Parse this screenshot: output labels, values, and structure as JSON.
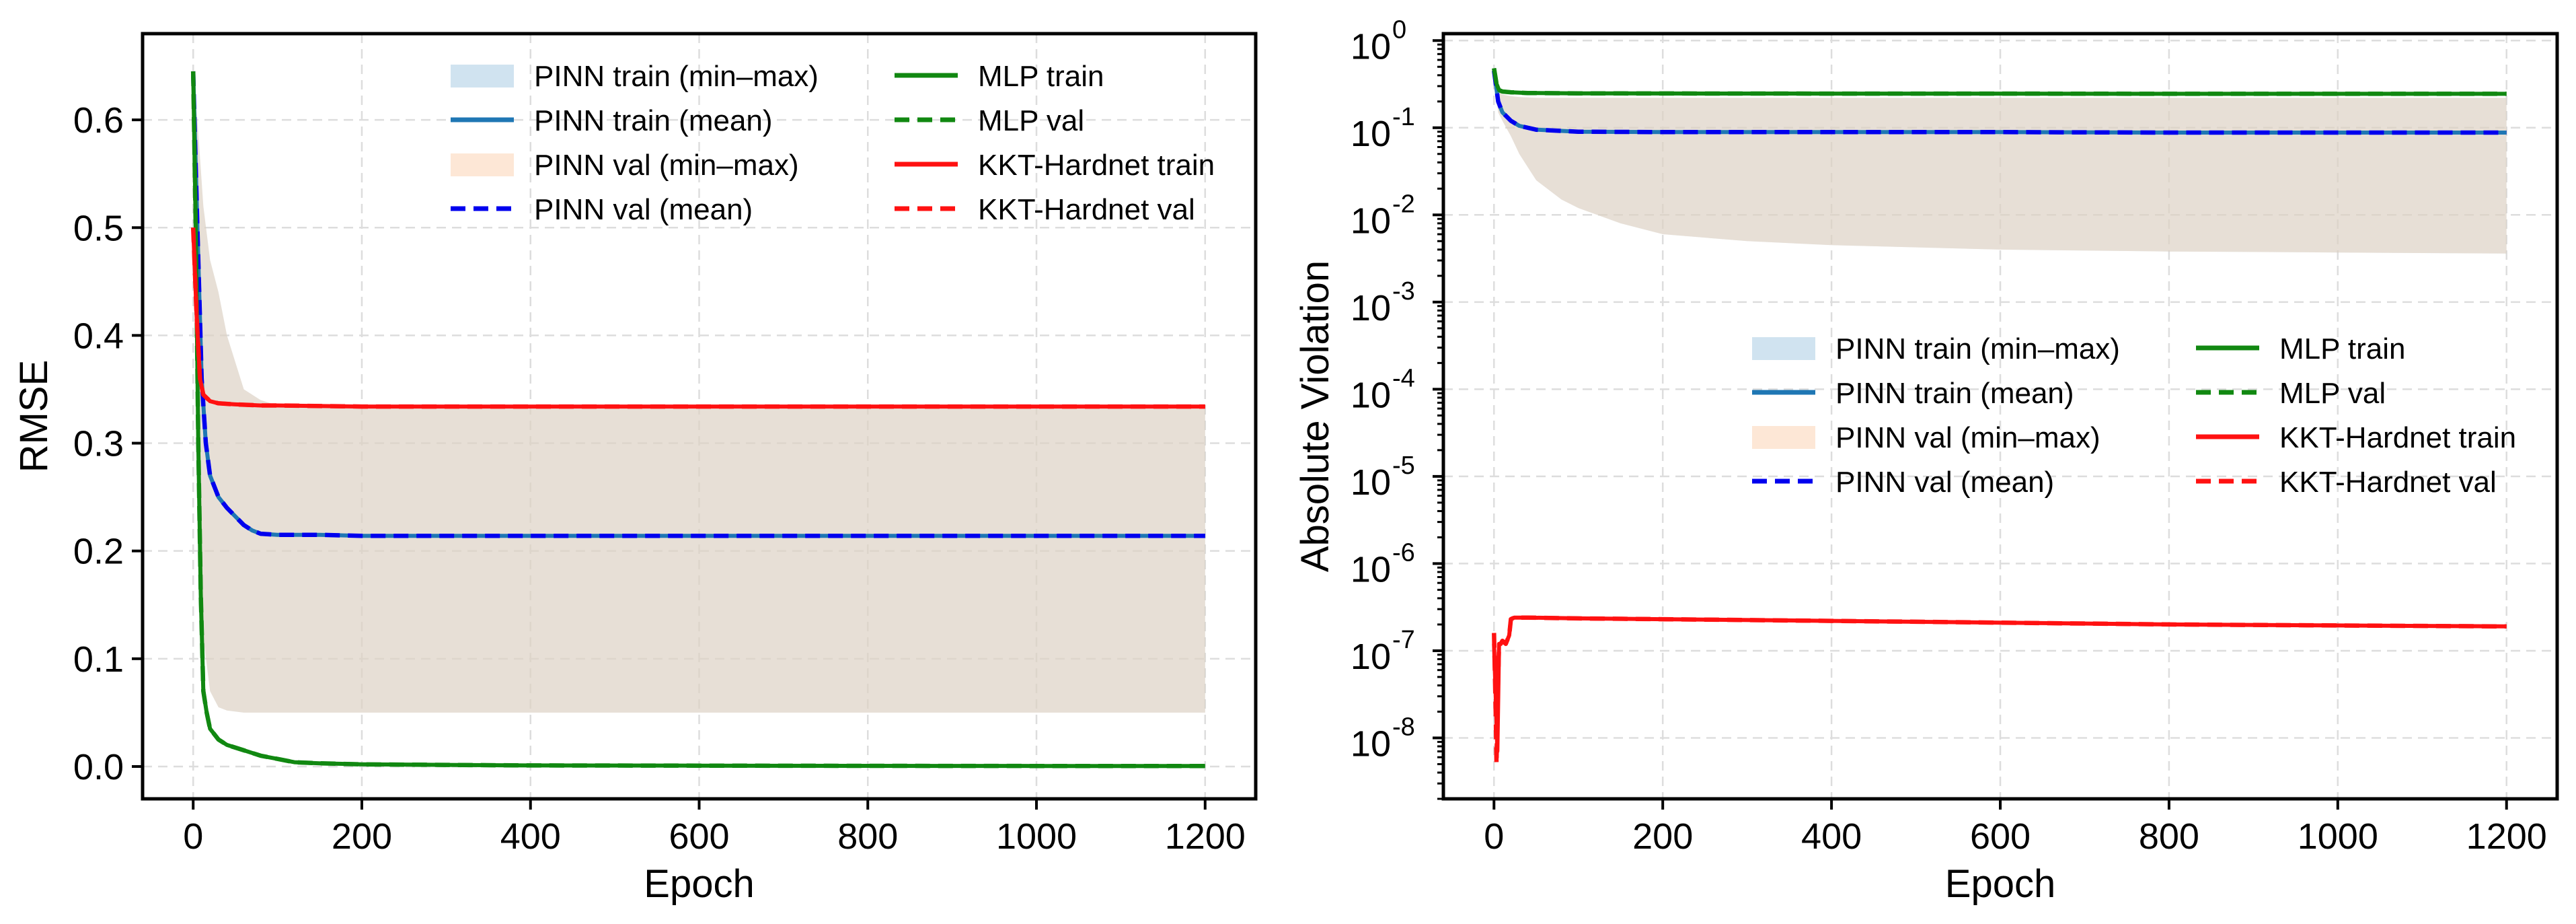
{
  "chart_data": [
    {
      "type": "line",
      "xlabel": "Epoch",
      "ylabel": "RMSE",
      "yscale": "linear",
      "xlim": [
        -60,
        1260
      ],
      "ylim": [
        -0.03,
        0.68
      ],
      "xticks": [
        0,
        200,
        400,
        600,
        800,
        1000,
        1200
      ],
      "xtick_labels": [
        "0",
        "200",
        "400",
        "600",
        "800",
        "1000",
        "1200"
      ],
      "yticks": [
        0.0,
        0.1,
        0.2,
        0.3,
        0.4,
        0.5,
        0.6
      ],
      "ytick_labels": [
        "0.0",
        "0.1",
        "0.2",
        "0.3",
        "0.4",
        "0.5",
        "0.6"
      ],
      "grid": true,
      "legend_position": "top-center",
      "series": [
        {
          "name": "PINN train (min–max)",
          "style": "band",
          "color": "#a9cce3",
          "x": [
            0,
            5,
            12,
            20,
            30,
            40,
            60,
            80,
            100,
            150,
            200,
            300,
            400,
            600,
            800,
            1000,
            1200
          ],
          "lower": [
            0.64,
            0.3,
            0.12,
            0.07,
            0.055,
            0.052,
            0.05,
            0.05,
            0.05,
            0.05,
            0.05,
            0.05,
            0.05,
            0.05,
            0.05,
            0.05,
            0.05
          ],
          "upper": [
            0.64,
            0.6,
            0.52,
            0.47,
            0.44,
            0.4,
            0.35,
            0.34,
            0.335,
            0.333,
            0.332,
            0.332,
            0.332,
            0.332,
            0.332,
            0.332,
            0.332
          ]
        },
        {
          "name": "PINN train (mean)",
          "style": "solid",
          "color": "#1f77b4",
          "x": [
            0,
            5,
            10,
            15,
            20,
            30,
            40,
            50,
            60,
            70,
            80,
            100,
            150,
            200,
            400,
            600,
            800,
            1000,
            1200
          ],
          "y": [
            0.645,
            0.5,
            0.36,
            0.3,
            0.27,
            0.25,
            0.24,
            0.232,
            0.224,
            0.219,
            0.216,
            0.215,
            0.215,
            0.214,
            0.214,
            0.214,
            0.214,
            0.214,
            0.214
          ]
        },
        {
          "name": "PINN val (min–max)",
          "style": "band",
          "color": "#fbd4b4",
          "x": [
            0,
            5,
            12,
            20,
            30,
            40,
            60,
            80,
            100,
            150,
            200,
            300,
            400,
            600,
            800,
            1000,
            1200
          ],
          "lower": [
            0.64,
            0.3,
            0.12,
            0.07,
            0.055,
            0.052,
            0.05,
            0.05,
            0.05,
            0.05,
            0.05,
            0.05,
            0.05,
            0.05,
            0.05,
            0.05,
            0.05
          ],
          "upper": [
            0.64,
            0.6,
            0.52,
            0.47,
            0.44,
            0.4,
            0.35,
            0.34,
            0.335,
            0.333,
            0.332,
            0.332,
            0.332,
            0.332,
            0.332,
            0.332,
            0.332
          ]
        },
        {
          "name": "PINN val (mean)",
          "style": "dashed",
          "color": "#0000ee",
          "x": [
            0,
            5,
            10,
            15,
            20,
            30,
            40,
            50,
            60,
            70,
            80,
            100,
            150,
            200,
            400,
            600,
            800,
            1000,
            1200
          ],
          "y": [
            0.645,
            0.5,
            0.36,
            0.3,
            0.27,
            0.25,
            0.24,
            0.232,
            0.224,
            0.219,
            0.216,
            0.215,
            0.215,
            0.214,
            0.214,
            0.214,
            0.214,
            0.214,
            0.214
          ]
        },
        {
          "name": "MLP train",
          "style": "solid",
          "color": "#118811",
          "x": [
            0,
            3,
            6,
            9,
            12,
            16,
            20,
            30,
            40,
            60,
            80,
            100,
            120,
            150,
            200,
            300,
            400,
            600,
            800,
            1000,
            1200
          ],
          "y": [
            0.645,
            0.5,
            0.3,
            0.16,
            0.07,
            0.05,
            0.035,
            0.025,
            0.02,
            0.015,
            0.01,
            0.007,
            0.004,
            0.003,
            0.002,
            0.0015,
            0.001,
            0.0008,
            0.0006,
            0.0005,
            0.0004
          ]
        },
        {
          "name": "MLP val",
          "style": "dashed",
          "color": "#118811",
          "x": [
            0,
            3,
            6,
            9,
            12,
            16,
            20,
            30,
            40,
            60,
            80,
            100,
            120,
            150,
            200,
            300,
            400,
            600,
            800,
            1000,
            1200
          ],
          "y": [
            0.645,
            0.5,
            0.3,
            0.16,
            0.07,
            0.05,
            0.035,
            0.025,
            0.02,
            0.015,
            0.01,
            0.007,
            0.004,
            0.003,
            0.002,
            0.0015,
            0.001,
            0.0008,
            0.0006,
            0.0005,
            0.0004
          ]
        },
        {
          "name": "KKT-Hardnet train",
          "style": "solid",
          "color": "#ff1111",
          "x": [
            0,
            4,
            8,
            12,
            16,
            20,
            30,
            50,
            80,
            100,
            200,
            400,
            600,
            800,
            1000,
            1200
          ],
          "y": [
            0.5,
            0.42,
            0.36,
            0.345,
            0.342,
            0.339,
            0.337,
            0.336,
            0.335,
            0.335,
            0.334,
            0.334,
            0.334,
            0.334,
            0.334,
            0.334
          ]
        },
        {
          "name": "KKT-Hardnet val",
          "style": "dashed",
          "color": "#ff1111",
          "x": [
            0,
            4,
            8,
            12,
            16,
            20,
            30,
            50,
            80,
            100,
            200,
            400,
            600,
            800,
            1000,
            1200
          ],
          "y": [
            0.5,
            0.42,
            0.36,
            0.345,
            0.342,
            0.339,
            0.337,
            0.336,
            0.335,
            0.335,
            0.334,
            0.334,
            0.334,
            0.334,
            0.334,
            0.334
          ]
        }
      ],
      "legend": {
        "columns": [
          [
            "PINN train (min–max)",
            "PINN train (mean)",
            "PINN val (min–max)",
            "PINN val (mean)"
          ],
          [
            "MLP train",
            "MLP val",
            "KKT-Hardnet train",
            "KKT-Hardnet val"
          ]
        ]
      }
    },
    {
      "type": "line",
      "xlabel": "Epoch",
      "ylabel": "Absolute Violation",
      "yscale": "log",
      "xlim": [
        -60,
        1260
      ],
      "ylim": [
        2e-09,
        1.2
      ],
      "xticks": [
        0,
        200,
        400,
        600,
        800,
        1000,
        1200
      ],
      "xtick_labels": [
        "0",
        "200",
        "400",
        "600",
        "800",
        "1000",
        "1200"
      ],
      "yticks": [
        1e-08,
        1e-07,
        1e-06,
        1e-05,
        0.0001,
        0.001,
        0.01,
        0.1,
        1
      ],
      "ytick_labels": [
        {
          "base": "10",
          "exp": "-8"
        },
        {
          "base": "10",
          "exp": "-7"
        },
        {
          "base": "10",
          "exp": "-6"
        },
        {
          "base": "10",
          "exp": "-5"
        },
        {
          "base": "10",
          "exp": "-4"
        },
        {
          "base": "10",
          "exp": "-3"
        },
        {
          "base": "10",
          "exp": "-2"
        },
        {
          "base": "10",
          "exp": "-1"
        },
        {
          "base": "10",
          "exp": "0"
        }
      ],
      "grid": true,
      "legend_position": "center",
      "series": [
        {
          "name": "PINN train (min–max)",
          "style": "band",
          "color": "#a9cce3",
          "x": [
            0,
            5,
            10,
            20,
            30,
            50,
            80,
            100,
            150,
            200,
            300,
            400,
            600,
            800,
            1000,
            1200
          ],
          "lower": [
            0.4,
            0.15,
            0.12,
            0.08,
            0.05,
            0.025,
            0.015,
            0.012,
            0.008,
            0.006,
            0.005,
            0.0045,
            0.004,
            0.0038,
            0.0037,
            0.0036
          ],
          "upper": [
            0.4,
            0.26,
            0.24,
            0.23,
            0.225,
            0.22,
            0.22,
            0.22,
            0.22,
            0.22,
            0.22,
            0.22,
            0.22,
            0.22,
            0.22,
            0.22
          ]
        },
        {
          "name": "PINN train (mean)",
          "style": "solid",
          "color": "#1f77b4",
          "x": [
            0,
            5,
            10,
            20,
            30,
            50,
            80,
            100,
            200,
            400,
            600,
            800,
            1000,
            1200
          ],
          "y": [
            0.45,
            0.2,
            0.15,
            0.12,
            0.105,
            0.095,
            0.092,
            0.09,
            0.089,
            0.089,
            0.089,
            0.088,
            0.088,
            0.088
          ]
        },
        {
          "name": "PINN val (min–max)",
          "style": "band",
          "color": "#fbd4b4",
          "x": [
            0,
            5,
            10,
            20,
            30,
            50,
            80,
            100,
            150,
            200,
            300,
            400,
            600,
            800,
            1000,
            1200
          ],
          "lower": [
            0.4,
            0.15,
            0.12,
            0.08,
            0.05,
            0.025,
            0.015,
            0.012,
            0.008,
            0.006,
            0.005,
            0.0045,
            0.004,
            0.0038,
            0.0037,
            0.0036
          ],
          "upper": [
            0.4,
            0.26,
            0.24,
            0.23,
            0.225,
            0.22,
            0.22,
            0.22,
            0.22,
            0.22,
            0.22,
            0.22,
            0.22,
            0.22,
            0.22,
            0.22
          ]
        },
        {
          "name": "PINN val (mean)",
          "style": "dashed",
          "color": "#0000ee",
          "x": [
            0,
            5,
            10,
            20,
            30,
            50,
            80,
            100,
            200,
            400,
            600,
            800,
            1000,
            1200
          ],
          "y": [
            0.45,
            0.2,
            0.15,
            0.12,
            0.105,
            0.095,
            0.092,
            0.09,
            0.089,
            0.089,
            0.089,
            0.088,
            0.088,
            0.088
          ]
        },
        {
          "name": "MLP train",
          "style": "solid",
          "color": "#118811",
          "x": [
            0,
            3,
            6,
            10,
            20,
            40,
            100,
            200,
            400,
            600,
            800,
            1000,
            1200
          ],
          "y": [
            0.48,
            0.32,
            0.27,
            0.26,
            0.255,
            0.25,
            0.248,
            0.247,
            0.246,
            0.246,
            0.245,
            0.245,
            0.245
          ]
        },
        {
          "name": "MLP val",
          "style": "dashed",
          "color": "#118811",
          "x": [
            0,
            3,
            6,
            10,
            20,
            40,
            100,
            200,
            400,
            600,
            800,
            1000,
            1200
          ],
          "y": [
            0.48,
            0.32,
            0.27,
            0.26,
            0.255,
            0.25,
            0.248,
            0.247,
            0.246,
            0.246,
            0.245,
            0.245,
            0.245
          ]
        },
        {
          "name": "KKT-Hardnet train",
          "style": "solid",
          "color": "#ff1111",
          "x": [
            0,
            2,
            4,
            6,
            8,
            10,
            14,
            18,
            20,
            24,
            40,
            100,
            200,
            400,
            600,
            800,
            1000,
            1200
          ],
          "y": [
            1.2e-07,
            3e-08,
            7e-09,
            1.2e-07,
            1.2e-07,
            1.3e-07,
            1.2e-07,
            1.5e-07,
            2.3e-07,
            2.4e-07,
            2.4e-07,
            2.35e-07,
            2.3e-07,
            2.2e-07,
            2.1e-07,
            2e-07,
            1.95e-07,
            1.9e-07
          ]
        },
        {
          "name": "KKT-Hardnet val",
          "style": "dashed",
          "color": "#ff1111",
          "x": [
            0,
            2,
            3,
            4,
            6,
            8,
            10,
            14,
            18,
            20,
            24,
            40,
            100,
            200,
            400,
            600,
            800,
            1000,
            1200
          ],
          "y": [
            1.6e-07,
            2e-08,
            5e-09,
            2e-08,
            1.2e-07,
            1.2e-07,
            1.3e-07,
            1.2e-07,
            1.5e-07,
            2.3e-07,
            2.4e-07,
            2.4e-07,
            2.35e-07,
            2.3e-07,
            2.2e-07,
            2.1e-07,
            2e-07,
            1.95e-07,
            1.9e-07
          ]
        }
      ],
      "legend": {
        "columns": [
          [
            "PINN train (min–max)",
            "PINN train (mean)",
            "PINN val (min–max)",
            "PINN val (mean)"
          ],
          [
            "MLP train",
            "MLP val",
            "KKT-Hardnet train",
            "KKT-Hardnet val"
          ]
        ]
      }
    }
  ]
}
